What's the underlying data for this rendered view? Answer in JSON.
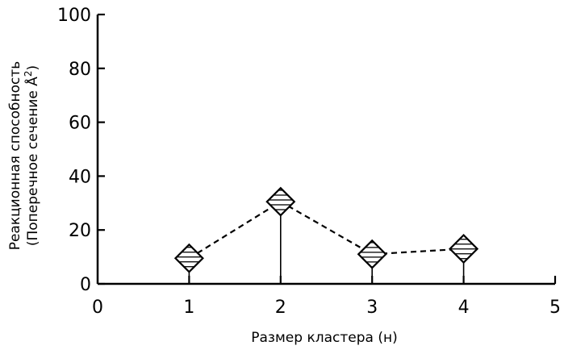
{
  "chart_data": {
    "type": "line",
    "title": "",
    "xlabel": "Размер кластера (н)",
    "ylabel": {
      "line1": "Реакционная способность",
      "line2_prefix": "(Поперечное сечение Å",
      "line2_sup": "2",
      "line2_suffix": ")"
    },
    "xlim": [
      0,
      5
    ],
    "ylim": [
      0,
      100
    ],
    "xticks": [
      0,
      1,
      2,
      3,
      4,
      5
    ],
    "yticks": [
      0,
      20,
      40,
      60,
      80,
      100
    ],
    "grid": false,
    "series": [
      {
        "x": [
          1,
          2,
          3,
          4
        ],
        "y": [
          9.5,
          30.5,
          11,
          13
        ],
        "marker": "hatched-diamond",
        "line_style": "dashed"
      }
    ],
    "colors": {
      "line": "#000000",
      "marker_fill": "#ffffff",
      "hatch": "#000000"
    }
  }
}
